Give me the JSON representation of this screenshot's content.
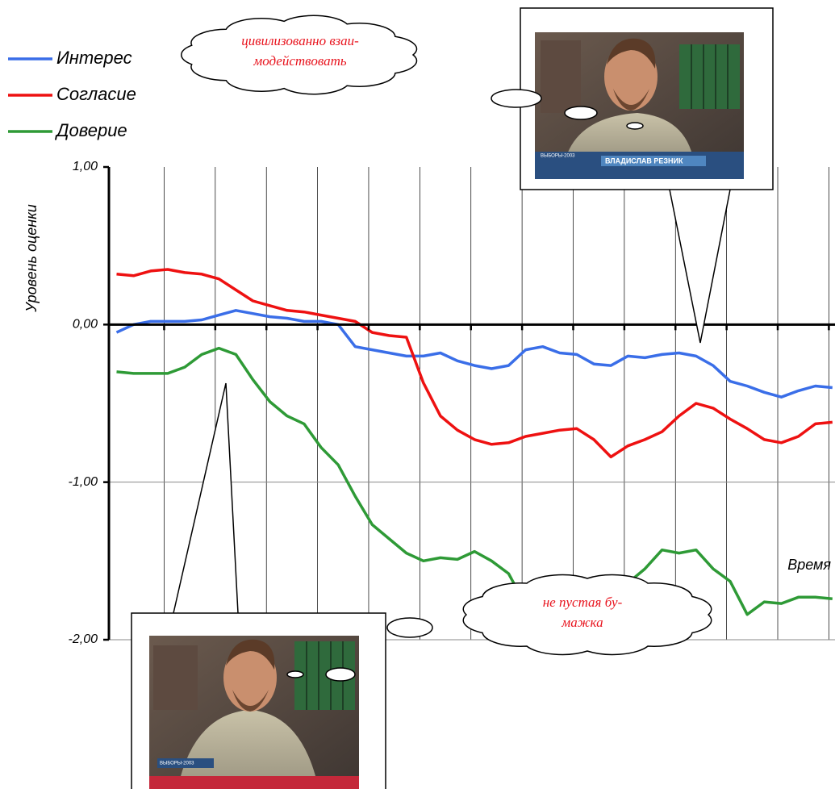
{
  "chart_data": {
    "type": "line",
    "ylabel": "Уровень оценки",
    "xlabel": "Время",
    "x": [
      0.15,
      0.4833,
      0.8167,
      1.15,
      1.4833,
      1.8167,
      2.15,
      2.4833,
      2.8167,
      3.15,
      3.4833,
      3.8167,
      4.15,
      4.4833,
      4.8167,
      5.15,
      5.4833,
      5.8167,
      6.15,
      6.4833,
      6.8167,
      7.15,
      7.4833,
      7.8167,
      8.15,
      8.4833,
      8.8167,
      9.15,
      9.4833,
      9.8167,
      10.15,
      10.4833,
      10.8167,
      11.15,
      11.4833,
      11.8167,
      12.15,
      12.4833,
      12.8167,
      13.15,
      13.4833,
      13.8167,
      14.15
    ],
    "xlim": [
      0,
      14.2
    ],
    "xticks": [
      1.08,
      2.08,
      3.08,
      4.08,
      5.08,
      6.08,
      7.08,
      8.08,
      9.08,
      10.08,
      11.08,
      12.08,
      13.08,
      14.08
    ],
    "ylim": [
      -2,
      1
    ],
    "yticks": [
      {
        "value": 1,
        "label": "1,00"
      },
      {
        "value": 0,
        "label": "0,00"
      },
      {
        "value": -1,
        "label": "-1,00"
      },
      {
        "value": -2,
        "label": "-2,00"
      }
    ],
    "grid": true,
    "legend": "top-left",
    "series": [
      {
        "name": "Интерес",
        "color": "#3a6ee8",
        "values": [
          -0.05,
          0.0,
          0.02,
          0.02,
          0.02,
          0.03,
          0.06,
          0.09,
          0.07,
          0.05,
          0.04,
          0.02,
          0.02,
          0.0,
          -0.14,
          -0.16,
          -0.18,
          -0.2,
          -0.2,
          -0.18,
          -0.23,
          -0.26,
          -0.28,
          -0.26,
          -0.16,
          -0.14,
          -0.18,
          -0.19,
          -0.25,
          -0.26,
          -0.2,
          -0.21,
          -0.19,
          -0.18,
          -0.2,
          -0.26,
          -0.36,
          -0.39,
          -0.43,
          -0.46,
          -0.42,
          -0.39,
          -0.4
        ]
      },
      {
        "name": "Согласие",
        "color": "#ee1111",
        "values": [
          0.32,
          0.31,
          0.34,
          0.35,
          0.33,
          0.32,
          0.29,
          0.22,
          0.15,
          0.12,
          0.09,
          0.08,
          0.06,
          0.04,
          0.02,
          -0.05,
          -0.07,
          -0.08,
          -0.37,
          -0.58,
          -0.67,
          -0.73,
          -0.76,
          -0.75,
          -0.71,
          -0.69,
          -0.67,
          -0.66,
          -0.73,
          -0.84,
          -0.77,
          -0.73,
          -0.68,
          -0.58,
          -0.5,
          -0.53,
          -0.6,
          -0.66,
          -0.73,
          -0.75,
          -0.71,
          -0.63,
          -0.62
        ]
      },
      {
        "name": "Доверие",
        "color": "#2e9a36",
        "values": [
          -0.3,
          -0.31,
          -0.31,
          -0.31,
          -0.27,
          -0.19,
          -0.15,
          -0.19,
          -0.35,
          -0.49,
          -0.58,
          -0.63,
          -0.78,
          -0.89,
          -1.09,
          -1.27,
          -1.36,
          -1.45,
          -1.5,
          -1.48,
          -1.49,
          -1.44,
          -1.5,
          -1.58,
          -1.78,
          -1.79,
          -1.75,
          -1.78,
          -1.75,
          -1.71,
          -1.64,
          -1.55,
          -1.43,
          -1.45,
          -1.43,
          -1.55,
          -1.63,
          -1.84,
          -1.76,
          -1.77,
          -1.73,
          -1.73,
          -1.74
        ]
      }
    ],
    "annotations": [
      "цивилизованно взаи-",
      "модействовать",
      "не пустая бу-",
      "мажка"
    ],
    "photo_captions": [
      "ВЫБОРЫ-2003",
      "ВЛАДИСЛАВ РЕЗНИК",
      "ВЫБОРЫ-2003"
    ]
  }
}
